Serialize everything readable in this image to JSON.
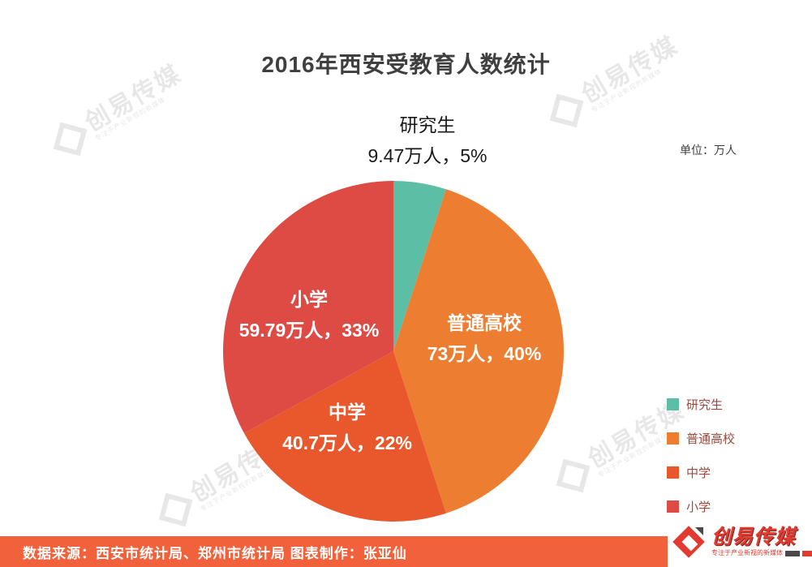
{
  "title": "2016年西安受教育人数统计",
  "unit_label": "单位：万人",
  "chart_data": {
    "type": "pie",
    "title": "2016年西安受教育人数统计",
    "unit": "万人",
    "start_angle_deg": 0,
    "legend_position": "right",
    "slices": [
      {
        "label": "研究生",
        "value": 9.47,
        "percent": 5,
        "color": "#5cbfa5",
        "value_text": "9.47万人，5%"
      },
      {
        "label": "普通高校",
        "value": 73,
        "percent": 40,
        "color": "#ed7d31",
        "value_text": "73万人，40%"
      },
      {
        "label": "中学",
        "value": 40.7,
        "percent": 22,
        "color": "#e9582c",
        "value_text": "40.7万人，22%"
      },
      {
        "label": "小学",
        "value": 59.79,
        "percent": 33,
        "color": "#de4b44",
        "value_text": "59.79万人，33%"
      }
    ]
  },
  "footer": {
    "source_text": "数据来源：西安市统计局、郑州市统计局  图表制作：张亚仙",
    "bar_color": "#f0613c"
  },
  "logo": {
    "name": "创易传媒",
    "tagline": "专注于产业新视的新媒体"
  },
  "watermark": {
    "text": "创易传媒",
    "subtext": "专注于产业新视的新媒体"
  }
}
